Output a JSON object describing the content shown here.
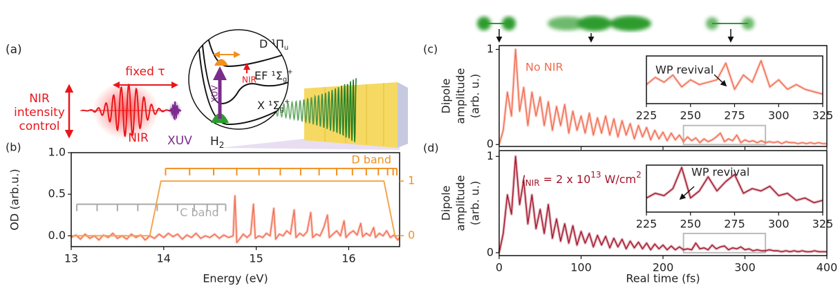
{
  "diagram": {
    "panel_label": "(a)",
    "intensity_control": [
      "NIR",
      "intensity",
      "control"
    ],
    "delay": "fixed τ",
    "nir": "NIR",
    "xuv": "XUV",
    "molecule": {
      "main": "H",
      "sub": "2"
    },
    "levels": [
      {
        "main": "D ¹Π",
        "sub": "u"
      },
      {
        "main": "EF ¹Σ",
        "sub": "g",
        "sup": "+"
      },
      {
        "main": "X ¹Σ",
        "sub": "g",
        "sup": "+"
      }
    ],
    "inset_nir": "NIR",
    "inset_xuv": "XUV"
  },
  "chart_data": [
    {
      "type": "line",
      "panel_label": "(b)",
      "xlabel": "Energy (eV)",
      "ylabel": "OD (arb.u.)",
      "xlim": [
        13,
        16.55
      ],
      "ylim": [
        -0.13,
        1.0
      ],
      "xticks": [
        13,
        14,
        15,
        16
      ],
      "yticks": [
        {
          "value": 0,
          "label": "0.0"
        },
        {
          "value": 0.5,
          "label": "0.5"
        },
        {
          "value": 1,
          "label": "1.0"
        }
      ],
      "y2lim": [
        -0.2,
        1.52
      ],
      "y2ticks": [
        0,
        1
      ],
      "y2color": "#f0901e",
      "series": [
        {
          "color": "#f26b4f",
          "x": [
            13.0,
            13.05,
            13.1,
            13.15,
            13.2,
            13.25,
            13.3,
            13.35,
            13.4,
            13.45,
            13.5,
            13.55,
            13.6,
            13.65,
            13.7,
            13.75,
            13.8,
            13.85,
            13.9,
            13.95,
            14.0,
            14.05,
            14.1,
            14.15,
            14.2,
            14.25,
            14.3,
            14.35,
            14.4,
            14.45,
            14.5,
            14.55,
            14.6,
            14.65,
            14.7,
            14.75,
            14.77,
            14.79,
            14.82,
            14.86,
            14.9,
            14.94,
            14.97,
            14.99,
            15.03,
            15.07,
            15.11,
            15.15,
            15.19,
            15.21,
            15.25,
            15.29,
            15.33,
            15.37,
            15.41,
            15.43,
            15.47,
            15.51,
            15.55,
            15.59,
            15.61,
            15.65,
            15.69,
            15.73,
            15.77,
            15.79,
            15.83,
            15.87,
            15.91,
            15.95,
            15.97,
            16.01,
            16.05,
            16.09,
            16.13,
            16.15,
            16.19,
            16.23,
            16.27,
            16.29,
            16.33,
            16.37,
            16.41,
            16.45,
            16.49,
            16.53,
            16.55
          ],
          "values": [
            -0.02,
            0.01,
            -0.04,
            0.02,
            -0.03,
            0,
            -0.05,
            0.01,
            -0.02,
            0.03,
            -0.03,
            0,
            -0.04,
            0.02,
            -0.02,
            0.01,
            -0.05,
            0,
            -0.03,
            0.02,
            -0.02,
            0.03,
            -0.01,
            0.02,
            -0.04,
            0.01,
            -0.02,
            0.03,
            -0.03,
            0,
            -0.02,
            0.02,
            -0.03,
            0.01,
            -0.02,
            0,
            0.48,
            -0.08,
            -0.04,
            0.02,
            -0.02,
            0.02,
            0.38,
            -0.03,
            0,
            -0.02,
            0.03,
            0,
            0.33,
            -0.04,
            0.02,
            0,
            0.06,
            0.02,
            0.31,
            -0.02,
            0.03,
            0,
            0.05,
            0.28,
            -0.02,
            0.02,
            0,
            0.1,
            0.25,
            -0.02,
            0.02,
            0.06,
            0,
            0.18,
            -0.02,
            0.03,
            0.06,
            0.01,
            0.15,
            -0.01,
            0.03,
            0,
            0.1,
            -0.02,
            0.03,
            0,
            0.06,
            -0.02,
            0.01,
            -0.05,
            -0.02
          ]
        },
        {
          "color": "#f5a54a",
          "axis": "y2",
          "x": [
            13,
            13.85,
            13.97,
            16.38,
            16.5,
            16.55
          ],
          "values": [
            0,
            0,
            1,
            1,
            0,
            0
          ]
        }
      ],
      "bands": [
        {
          "name": "C band",
          "color": "#aaaaaa",
          "level": 0.38,
          "positions": [
            13.06,
            13.28,
            13.5,
            13.72,
            13.93,
            14.15,
            14.33,
            14.47,
            14.58,
            14.67
          ]
        },
        {
          "name": "D band",
          "color": "#f0901e",
          "level": 0.81,
          "positions": [
            14.02,
            14.28,
            14.54,
            14.79,
            15.03,
            15.26,
            15.48,
            15.68,
            15.87,
            16.04,
            16.19,
            16.32,
            16.42,
            16.48,
            16.52
          ]
        }
      ]
    },
    {
      "type": "line",
      "panel_label": "(c)",
      "ylabel": [
        "Dipole",
        "amplitude",
        "(arb. u.)"
      ],
      "annotation": "No NIR",
      "annotation_color": "#f26b4f",
      "xlim": [
        0,
        400
      ],
      "ylim": [
        -0.02,
        1.04
      ],
      "yticks": [
        0,
        1
      ],
      "highlight": {
        "x": [
          225,
          325
        ],
        "y": [
          0,
          0.2
        ],
        "color": "#bbbbbb"
      },
      "series": [
        {
          "color": "#f26b4f",
          "x": [
            0,
            5,
            10,
            15,
            20,
            25,
            30,
            35,
            40,
            45,
            50,
            55,
            60,
            65,
            70,
            75,
            80,
            85,
            90,
            95,
            100,
            105,
            110,
            115,
            120,
            125,
            130,
            135,
            140,
            145,
            150,
            155,
            160,
            165,
            170,
            175,
            180,
            185,
            190,
            195,
            200,
            205,
            210,
            215,
            220,
            225,
            230,
            235,
            240,
            245,
            250,
            255,
            260,
            265,
            270,
            275,
            280,
            285,
            290,
            295,
            300,
            305,
            310,
            315,
            320,
            325,
            330,
            335,
            340,
            345,
            350,
            355,
            360,
            365,
            370,
            375,
            380,
            385,
            390,
            395,
            400
          ],
          "values": [
            0,
            0.15,
            0.55,
            0.3,
            1.0,
            0.35,
            0.6,
            0.2,
            0.55,
            0.3,
            0.5,
            0.2,
            0.45,
            0.15,
            0.4,
            0.2,
            0.42,
            0.12,
            0.35,
            0.15,
            0.3,
            0.12,
            0.33,
            0.1,
            0.28,
            0.12,
            0.3,
            0.1,
            0.27,
            0.08,
            0.25,
            0.1,
            0.22,
            0.06,
            0.2,
            0.08,
            0.18,
            0.05,
            0.15,
            0.06,
            0.13,
            0.04,
            0.12,
            0.05,
            0.1,
            0.03,
            0.08,
            0.04,
            0.07,
            0.02,
            0.06,
            0.03,
            0.05,
            0.08,
            0.12,
            0.03,
            0.06,
            0.04,
            0.1,
            0.02,
            0.05,
            0.03,
            0.04,
            0.02,
            0.04,
            0.02,
            0.03,
            0.02,
            0.03,
            0.01,
            0.03,
            0.02,
            0.02,
            0.01,
            0.02,
            0.01,
            0.02,
            0.01,
            0.02,
            0.01,
            0.01
          ]
        }
      ]
    },
    {
      "type": "line",
      "title": "WP revival",
      "xlim": [
        225,
        325
      ],
      "ylim": [
        0,
        1
      ],
      "xticks": [
        225,
        250,
        275,
        300,
        325
      ],
      "series": [
        {
          "color": "#f26b4f",
          "x": [
            225,
            230,
            235,
            240,
            245,
            250,
            255,
            260,
            265,
            270,
            275,
            280,
            285,
            290,
            295,
            300,
            305,
            310,
            315,
            320,
            325
          ],
          "values": [
            0.4,
            0.55,
            0.45,
            0.6,
            0.35,
            0.5,
            0.4,
            0.45,
            0.5,
            0.85,
            0.3,
            0.6,
            0.45,
            0.9,
            0.35,
            0.5,
            0.3,
            0.4,
            0.3,
            0.25,
            0.2
          ]
        }
      ]
    },
    {
      "type": "line",
      "panel_label": "(d)",
      "ylabel": [
        "Dipole",
        "amplitude",
        "(arb. u.)"
      ],
      "xlabel": "Real time (fs)",
      "annotation": {
        "symbol": "I",
        "subscript": "NIR",
        "text": "= 2 x 10",
        "exponent": "13",
        "unit": "W/cm",
        "unit_exponent": "2"
      },
      "annotation_color": "#a3142a",
      "xlim": [
        0,
        400
      ],
      "ylim": [
        -0.03,
        1.06
      ],
      "xticks": [
        0,
        100,
        200,
        300,
        400
      ],
      "yticks": [
        0,
        1
      ],
      "highlight": {
        "x": [
          225,
          325
        ],
        "y": [
          0,
          0.2
        ],
        "color": "#bbbbbb"
      },
      "series": [
        {
          "color": "#a3142a",
          "x": [
            0,
            5,
            10,
            15,
            20,
            25,
            30,
            35,
            40,
            45,
            50,
            55,
            60,
            65,
            70,
            75,
            80,
            85,
            90,
            95,
            100,
            105,
            110,
            115,
            120,
            125,
            130,
            135,
            140,
            145,
            150,
            155,
            160,
            165,
            170,
            175,
            180,
            185,
            190,
            195,
            200,
            205,
            210,
            215,
            220,
            225,
            230,
            235,
            240,
            245,
            250,
            255,
            260,
            265,
            270,
            275,
            280,
            285,
            290,
            295,
            300,
            305,
            310,
            315,
            320,
            325,
            330,
            335,
            340,
            345,
            350,
            355,
            360,
            365,
            370,
            375,
            380,
            385,
            390,
            395,
            400
          ],
          "values": [
            0,
            0.2,
            0.6,
            0.4,
            1.0,
            0.5,
            0.75,
            0.3,
            0.6,
            0.25,
            0.45,
            0.2,
            0.5,
            0.15,
            0.35,
            0.12,
            0.3,
            0.1,
            0.28,
            0.08,
            0.22,
            0.1,
            0.2,
            0.06,
            0.18,
            0.08,
            0.17,
            0.05,
            0.15,
            0.06,
            0.14,
            0.04,
            0.12,
            0.05,
            0.11,
            0.04,
            0.1,
            0.03,
            0.09,
            0.04,
            0.08,
            0.03,
            0.07,
            0.03,
            0.06,
            0.03,
            0.04,
            0.03,
            0.1,
            0.04,
            0.05,
            0.03,
            0.08,
            0.04,
            0.06,
            0.07,
            0.03,
            0.05,
            0.04,
            0.06,
            0.03,
            0.04,
            0.02,
            0.03,
            0.02,
            0.02,
            0.03,
            0.02,
            0.02,
            0.01,
            0.02,
            0.01,
            0.02,
            0.01,
            0.02,
            0.01,
            0.01,
            0.02,
            0.01,
            0.01,
            0.01
          ]
        }
      ]
    },
    {
      "type": "line",
      "title": "WP revival",
      "xlim": [
        225,
        325
      ],
      "ylim": [
        0,
        1
      ],
      "xticks": [
        225,
        250,
        275,
        300,
        325
      ],
      "series": [
        {
          "color": "#a3142a",
          "x": [
            225,
            230,
            235,
            240,
            245,
            250,
            255,
            260,
            265,
            270,
            275,
            280,
            285,
            290,
            295,
            300,
            305,
            310,
            315,
            320,
            325
          ],
          "values": [
            0.3,
            0.4,
            0.35,
            0.5,
            0.95,
            0.3,
            0.45,
            0.75,
            0.45,
            0.65,
            0.8,
            0.4,
            0.5,
            0.45,
            0.55,
            0.35,
            0.4,
            0.25,
            0.3,
            0.2,
            0.25
          ]
        }
      ]
    }
  ]
}
